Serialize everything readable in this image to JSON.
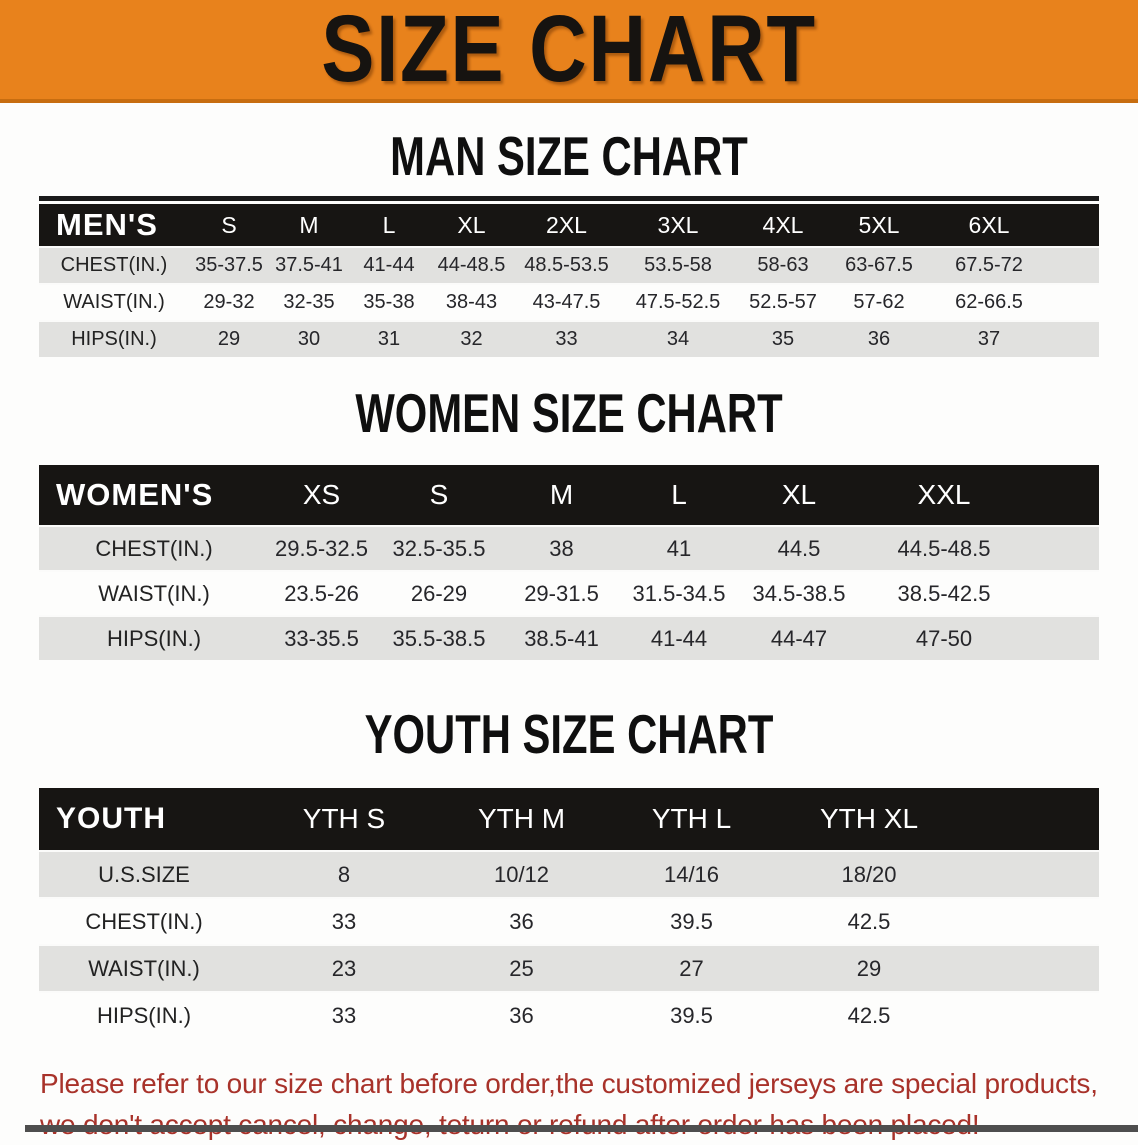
{
  "banner": {
    "title": "SIZE CHART",
    "bg_color": "#E8821C",
    "text_color": "#161310"
  },
  "sections": [
    {
      "heading": "MAN SIZE CHART",
      "table": {
        "corner": "MEN'S",
        "columns": [
          "S",
          "M",
          "L",
          "XL",
          "2XL",
          "3XL",
          "4XL",
          "5XL",
          "6XL"
        ],
        "rows": [
          {
            "label": "CHEST(IN.)",
            "values": [
              "35-37.5",
              "37.5-41",
              "41-44",
              "44-48.5",
              "48.5-53.5",
              "53.5-58",
              "58-63",
              "63-67.5",
              "67.5-72"
            ]
          },
          {
            "label": "WAIST(IN.)",
            "values": [
              "29-32",
              "32-35",
              "35-38",
              "38-43",
              "43-47.5",
              "47.5-52.5",
              "52.5-57",
              "57-62",
              "62-66.5"
            ]
          },
          {
            "label": "HIPS(IN.)",
            "values": [
              "29",
              "30",
              "31",
              "32",
              "33",
              "34",
              "35",
              "36",
              "37"
            ]
          }
        ]
      }
    },
    {
      "heading": "WOMEN SIZE CHART",
      "table": {
        "corner": "WOMEN'S",
        "columns": [
          "XS",
          "S",
          "M",
          "L",
          "XL",
          "XXL"
        ],
        "rows": [
          {
            "label": "CHEST(IN.)",
            "values": [
              "29.5-32.5",
              "32.5-35.5",
              "38",
              "41",
              "44.5",
              "44.5-48.5"
            ]
          },
          {
            "label": "WAIST(IN.)",
            "values": [
              "23.5-26",
              "26-29",
              "29-31.5",
              "31.5-34.5",
              "34.5-38.5",
              "38.5-42.5"
            ]
          },
          {
            "label": "HIPS(IN.)",
            "values": [
              "33-35.5",
              "35.5-38.5",
              "38.5-41",
              "41-44",
              "44-47",
              "47-50"
            ]
          }
        ]
      }
    },
    {
      "heading": "YOUTH SIZE CHART",
      "table": {
        "corner": "YOUTH",
        "columns": [
          "YTH S",
          "YTH M",
          "YTH L",
          "YTH XL"
        ],
        "rows": [
          {
            "label": "U.S.SIZE",
            "values": [
              "8",
              "10/12",
              "14/16",
              "18/20"
            ]
          },
          {
            "label": "CHEST(IN.)",
            "values": [
              "33",
              "36",
              "39.5",
              "42.5"
            ]
          },
          {
            "label": "WAIST(IN.)",
            "values": [
              "23",
              "25",
              "27",
              "29"
            ]
          },
          {
            "label": "HIPS(IN.)",
            "values": [
              "33",
              "36",
              "39.5",
              "42.5"
            ]
          }
        ]
      }
    }
  ],
  "footnote": {
    "line1": "Please refer to our size chart before order,the customized jerseys are special products,",
    "line2": "we don't accept cancel, change, teturn or refund after order has been placed!",
    "color": "#A8322A"
  },
  "colors": {
    "header_bar": "#171513",
    "row_gray": "#E1E1DF",
    "row_white": "#FDFDFC",
    "banner_orange": "#E8821C"
  }
}
